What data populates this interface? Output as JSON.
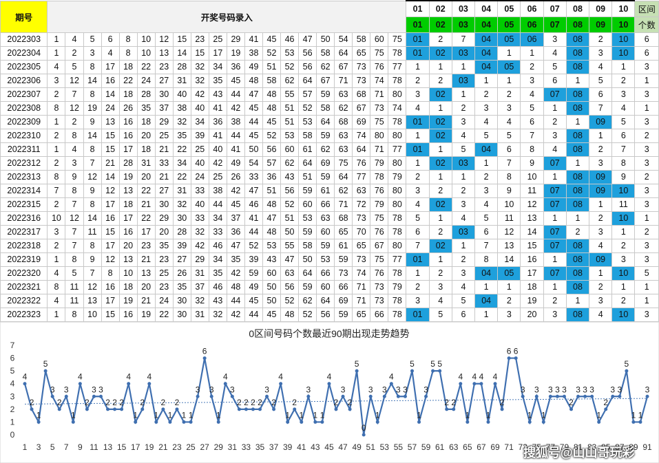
{
  "header": {
    "period_label": "期号",
    "draw_title": "开奖号码录入",
    "zone_labels": [
      "01",
      "02",
      "03",
      "04",
      "05",
      "06",
      "07",
      "08",
      "09",
      "10"
    ],
    "count_label_1": "区间",
    "count_label_2": "个数"
  },
  "rows": [
    {
      "period": "2022303",
      "nums": [
        1,
        4,
        5,
        6,
        8,
        10,
        12,
        15,
        23,
        25,
        29,
        41,
        45,
        46,
        47,
        50,
        54,
        58,
        60,
        75
      ],
      "zones": [
        "01",
        "2",
        "7",
        "04",
        "05",
        "06",
        "3",
        "08",
        "2",
        "10"
      ],
      "count": "6"
    },
    {
      "period": "2022304",
      "nums": [
        1,
        2,
        3,
        4,
        8,
        10,
        13,
        14,
        15,
        17,
        19,
        38,
        52,
        53,
        56,
        58,
        64,
        65,
        75,
        78
      ],
      "zones": [
        "01",
        "02",
        "03",
        "04",
        "1",
        "1",
        "4",
        "08",
        "3",
        "10"
      ],
      "count": "6"
    },
    {
      "period": "2022305",
      "nums": [
        4,
        5,
        8,
        17,
        18,
        22,
        23,
        28,
        32,
        34,
        36,
        49,
        51,
        52,
        56,
        62,
        67,
        73,
        76,
        77
      ],
      "zones": [
        "1",
        "1",
        "1",
        "04",
        "05",
        "2",
        "5",
        "08",
        "4",
        "1"
      ],
      "count": "3"
    },
    {
      "period": "2022306",
      "nums": [
        3,
        12,
        14,
        16,
        22,
        24,
        27,
        31,
        32,
        35,
        45,
        48,
        58,
        62,
        64,
        67,
        71,
        73,
        74,
        78
      ],
      "zones": [
        "2",
        "2",
        "03",
        "1",
        "1",
        "3",
        "6",
        "1",
        "5",
        "2"
      ],
      "count": "1"
    },
    {
      "period": "2022307",
      "nums": [
        2,
        7,
        8,
        14,
        18,
        28,
        30,
        40,
        42,
        43,
        44,
        47,
        48,
        55,
        57,
        59,
        63,
        68,
        71,
        80
      ],
      "zones": [
        "3",
        "02",
        "1",
        "2",
        "2",
        "4",
        "07",
        "08",
        "6",
        "3"
      ],
      "count": "3"
    },
    {
      "period": "2022308",
      "nums": [
        8,
        12,
        19,
        24,
        26,
        35,
        37,
        38,
        40,
        41,
        42,
        45,
        48,
        51,
        52,
        58,
        62,
        67,
        73,
        74
      ],
      "zones": [
        "4",
        "1",
        "2",
        "3",
        "3",
        "5",
        "1",
        "08",
        "7",
        "4"
      ],
      "count": "1"
    },
    {
      "period": "2022309",
      "nums": [
        1,
        2,
        9,
        13,
        16,
        18,
        29,
        32,
        34,
        36,
        38,
        44,
        45,
        51,
        53,
        64,
        68,
        69,
        75,
        78
      ],
      "zones": [
        "01",
        "02",
        "3",
        "4",
        "4",
        "6",
        "2",
        "1",
        "09",
        "5"
      ],
      "count": "3"
    },
    {
      "period": "2022310",
      "nums": [
        2,
        8,
        14,
        15,
        16,
        20,
        25,
        35,
        39,
        41,
        44,
        45,
        52,
        53,
        58,
        59,
        63,
        74,
        80,
        80
      ],
      "zones": [
        "1",
        "02",
        "4",
        "5",
        "5",
        "7",
        "3",
        "08",
        "1",
        "6"
      ],
      "count": "2"
    },
    {
      "period": "2022311",
      "nums": [
        1,
        4,
        8,
        15,
        17,
        18,
        21,
        22,
        25,
        40,
        41,
        50,
        56,
        60,
        61,
        62,
        63,
        64,
        71,
        77
      ],
      "zones": [
        "01",
        "1",
        "5",
        "04",
        "6",
        "8",
        "4",
        "08",
        "2",
        "7"
      ],
      "count": "3"
    },
    {
      "period": "2022312",
      "nums": [
        2,
        3,
        7,
        21,
        28,
        31,
        33,
        34,
        40,
        42,
        49,
        54,
        57,
        62,
        64,
        69,
        75,
        76,
        79,
        80
      ],
      "zones": [
        "1",
        "02",
        "03",
        "1",
        "7",
        "9",
        "07",
        "1",
        "3",
        "8"
      ],
      "count": "3"
    },
    {
      "period": "2022313",
      "nums": [
        8,
        9,
        12,
        14,
        19,
        20,
        21,
        22,
        24,
        25,
        26,
        33,
        36,
        43,
        51,
        59,
        64,
        77,
        78,
        79
      ],
      "zones": [
        "2",
        "1",
        "1",
        "2",
        "8",
        "10",
        "1",
        "08",
        "09",
        "9"
      ],
      "count": "2"
    },
    {
      "period": "2022314",
      "nums": [
        7,
        8,
        9,
        12,
        13,
        22,
        27,
        31,
        33,
        38,
        42,
        47,
        51,
        56,
        59,
        61,
        62,
        63,
        76,
        80
      ],
      "zones": [
        "3",
        "2",
        "2",
        "3",
        "9",
        "11",
        "07",
        "08",
        "09",
        "10"
      ],
      "count": "3"
    },
    {
      "period": "2022315",
      "nums": [
        2,
        7,
        8,
        17,
        18,
        21,
        30,
        32,
        40,
        44,
        45,
        46,
        48,
        52,
        60,
        66,
        71,
        72,
        79,
        80
      ],
      "zones": [
        "4",
        "02",
        "3",
        "4",
        "10",
        "12",
        "07",
        "08",
        "1",
        "11"
      ],
      "count": "3"
    },
    {
      "period": "2022316",
      "nums": [
        10,
        12,
        14,
        16,
        17,
        22,
        29,
        30,
        33,
        34,
        37,
        41,
        47,
        51,
        53,
        63,
        68,
        73,
        75,
        78
      ],
      "zones": [
        "5",
        "1",
        "4",
        "5",
        "11",
        "13",
        "1",
        "1",
        "2",
        "10"
      ],
      "count": "1"
    },
    {
      "period": "2022317",
      "nums": [
        3,
        7,
        11,
        15,
        16,
        17,
        20,
        28,
        32,
        33,
        36,
        44,
        48,
        50,
        59,
        60,
        65,
        70,
        76,
        78
      ],
      "zones": [
        "6",
        "2",
        "03",
        "6",
        "12",
        "14",
        "07",
        "2",
        "3",
        "1"
      ],
      "count": "2"
    },
    {
      "period": "2022318",
      "nums": [
        2,
        7,
        8,
        17,
        20,
        23,
        35,
        39,
        42,
        46,
        47,
        52,
        53,
        55,
        58,
        59,
        61,
        65,
        67,
        80
      ],
      "zones": [
        "7",
        "02",
        "1",
        "7",
        "13",
        "15",
        "07",
        "08",
        "4",
        "2"
      ],
      "count": "3"
    },
    {
      "period": "2022319",
      "nums": [
        1,
        8,
        9,
        12,
        13,
        21,
        23,
        27,
        29,
        34,
        35,
        39,
        43,
        47,
        50,
        53,
        59,
        73,
        75,
        77
      ],
      "zones": [
        "01",
        "1",
        "2",
        "8",
        "14",
        "16",
        "1",
        "08",
        "09",
        "3"
      ],
      "count": "3"
    },
    {
      "period": "2022320",
      "nums": [
        4,
        5,
        7,
        8,
        10,
        13,
        25,
        26,
        31,
        35,
        42,
        59,
        60,
        63,
        64,
        66,
        73,
        74,
        76,
        78
      ],
      "zones": [
        "1",
        "2",
        "3",
        "04",
        "05",
        "17",
        "07",
        "08",
        "1",
        "10"
      ],
      "count": "5"
    },
    {
      "period": "2022321",
      "nums": [
        8,
        11,
        12,
        16,
        18,
        20,
        23,
        35,
        37,
        46,
        48,
        49,
        50,
        56,
        59,
        60,
        66,
        71,
        73,
        79
      ],
      "zones": [
        "2",
        "3",
        "4",
        "1",
        "1",
        "18",
        "1",
        "08",
        "2",
        "1"
      ],
      "count": "1"
    },
    {
      "period": "2022322",
      "nums": [
        4,
        11,
        13,
        17,
        19,
        21,
        24,
        30,
        32,
        43,
        44,
        45,
        50,
        52,
        62,
        64,
        69,
        71,
        73,
        78
      ],
      "zones": [
        "3",
        "4",
        "5",
        "04",
        "2",
        "19",
        "2",
        "1",
        "3",
        "2"
      ],
      "count": "1"
    },
    {
      "period": "2022323",
      "nums": [
        1,
        8,
        10,
        15,
        16,
        19,
        22,
        30,
        31,
        32,
        42,
        44,
        45,
        48,
        52,
        56,
        59,
        65,
        66,
        78
      ],
      "zones": [
        "01",
        "5",
        "6",
        "1",
        "3",
        "20",
        "3",
        "08",
        "4",
        "10"
      ],
      "count": "3"
    }
  ],
  "chart": {
    "title": "0区间号码个数最近90期出现走势趋势",
    "y_ticks": [
      "0",
      "1",
      "2",
      "3",
      "4",
      "5",
      "6",
      "7"
    ],
    "x_ticks": [
      "1",
      "3",
      "5",
      "7",
      "9",
      "11",
      "13",
      "15",
      "17",
      "19",
      "21",
      "23",
      "25",
      "27",
      "29",
      "31",
      "33",
      "35",
      "37",
      "39",
      "41",
      "43",
      "45",
      "47",
      "49",
      "51",
      "53",
      "55",
      "57",
      "59",
      "61",
      "63",
      "65",
      "67",
      "69",
      "71",
      "73",
      "75",
      "77",
      "79",
      "81",
      "83",
      "85",
      "87",
      "89",
      "91"
    ]
  },
  "chart_data": {
    "type": "line",
    "title": "0区间号码个数最近90期出现走势趋势",
    "ylim": [
      0,
      7
    ],
    "x": [
      1,
      2,
      3,
      4,
      5,
      6,
      7,
      8,
      9,
      10,
      11,
      12,
      13,
      14,
      15,
      16,
      17,
      18,
      19,
      20,
      21,
      22,
      23,
      24,
      25,
      26,
      27,
      28,
      29,
      30,
      31,
      32,
      33,
      34,
      35,
      36,
      37,
      38,
      39,
      40,
      41,
      42,
      43,
      44,
      45,
      46,
      47,
      48,
      49,
      50,
      51,
      52,
      53,
      54,
      55,
      56,
      57,
      58,
      59,
      60,
      61,
      62,
      63,
      64,
      65,
      66,
      67,
      68,
      69,
      70,
      71,
      72,
      73,
      74,
      75,
      76,
      77,
      78,
      79,
      80,
      81,
      82,
      83,
      84,
      85,
      86,
      87,
      88,
      89,
      90,
      91
    ],
    "series": [
      {
        "values": [
          4,
          2,
          1,
          5,
          3,
          2,
          3,
          1,
          4,
          2,
          3,
          3,
          2,
          2,
          2,
          4,
          1,
          2,
          4,
          1,
          2,
          1,
          2,
          1,
          1,
          3,
          6,
          3,
          1,
          4,
          3,
          2,
          2,
          2,
          2,
          3,
          2,
          4,
          1,
          2,
          1,
          3,
          1,
          1,
          4,
          2,
          3,
          2,
          5,
          0,
          3,
          1,
          3,
          4,
          3,
          3,
          5,
          1,
          3,
          5,
          5,
          2,
          2,
          4,
          1,
          4,
          4,
          1,
          4,
          2,
          6,
          6,
          3,
          1,
          3,
          1,
          3,
          3,
          3,
          2,
          3,
          3,
          3,
          1,
          2,
          3,
          3,
          5,
          1,
          1,
          3
        ]
      }
    ],
    "trendline": "dotted"
  },
  "watermark": "搜狐号@山山哥玩彩"
}
